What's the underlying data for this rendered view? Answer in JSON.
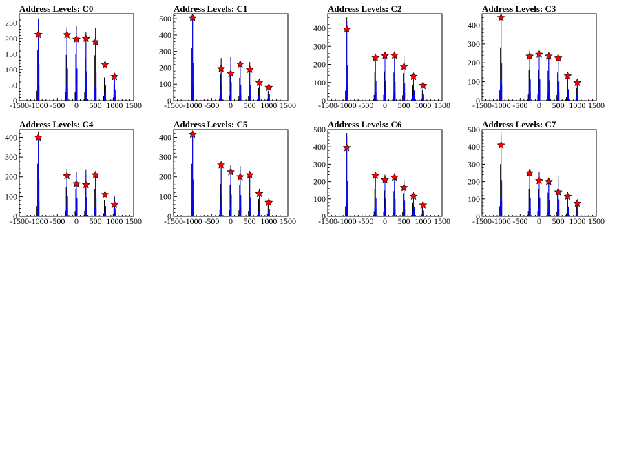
{
  "chart_data": [
    {
      "type": "histogram",
      "title": "Address Levels: C0",
      "xlim": [
        -1500,
        1500
      ],
      "ylim": [
        0,
        280
      ],
      "xticks": [
        -1500,
        -1000,
        -500,
        0,
        500,
        1000,
        1500
      ],
      "yticks": [
        0,
        50,
        100,
        150,
        200,
        250
      ],
      "series": [
        {
          "color": "#000000",
          "x": [
            -1000,
            -250,
            0,
            250,
            500,
            750,
            1000
          ],
          "y": [
            265,
            237,
            240,
            220,
            235,
            120,
            85
          ]
        },
        {
          "color": "#0000ff",
          "x": [
            -1000,
            -250,
            0,
            250,
            500,
            750,
            1000
          ],
          "y": [
            260,
            230,
            230,
            210,
            205,
            110,
            80
          ]
        }
      ],
      "peaks": {
        "color": "#ff0000",
        "x": [
          -1000,
          -250,
          0,
          250,
          500,
          750,
          1000
        ],
        "y": [
          213,
          212,
          198,
          200,
          189,
          116,
          77
        ]
      }
    },
    {
      "type": "histogram",
      "title": "Address Levels: C1",
      "xlim": [
        -1500,
        1500
      ],
      "ylim": [
        0,
        530
      ],
      "xticks": [
        -1500,
        -1000,
        -500,
        0,
        500,
        1000,
        1500
      ],
      "yticks": [
        0,
        100,
        200,
        300,
        400,
        500
      ],
      "series": [
        {
          "color": "#000000",
          "x": [
            -1000,
            -250,
            0,
            250,
            500,
            750,
            1000
          ],
          "y": [
            520,
            260,
            265,
            225,
            235,
            130,
            95
          ]
        },
        {
          "color": "#0000ff",
          "x": [
            -1000,
            -250,
            0,
            250,
            500,
            750,
            1000
          ],
          "y": [
            505,
            240,
            250,
            210,
            210,
            115,
            85
          ]
        }
      ],
      "peaks": {
        "color": "#ff0000",
        "x": [
          -1000,
          -250,
          0,
          250,
          500,
          750,
          1000
        ],
        "y": [
          505,
          195,
          165,
          222,
          190,
          110,
          80
        ]
      }
    },
    {
      "type": "histogram",
      "title": "Address Levels: C2",
      "xlim": [
        -1500,
        1500
      ],
      "ylim": [
        0,
        480
      ],
      "xticks": [
        -1500,
        -1000,
        -500,
        0,
        500,
        1000,
        1500
      ],
      "yticks": [
        0,
        100,
        200,
        300,
        400
      ],
      "series": [
        {
          "color": "#000000",
          "x": [
            -1000,
            -250,
            0,
            250,
            500,
            750,
            1000
          ],
          "y": [
            460,
            255,
            260,
            250,
            245,
            140,
            95
          ]
        },
        {
          "color": "#0000ff",
          "x": [
            -1000,
            -250,
            0,
            250,
            500,
            750,
            1000
          ],
          "y": [
            440,
            240,
            245,
            230,
            220,
            125,
            85
          ]
        }
      ],
      "peaks": {
        "color": "#ff0000",
        "x": [
          -1000,
          -250,
          0,
          250,
          500,
          750,
          1000
        ],
        "y": [
          395,
          237,
          248,
          250,
          188,
          133,
          83
        ]
      }
    },
    {
      "type": "histogram",
      "title": "Address Levels: C3",
      "xlim": [
        -1500,
        1500
      ],
      "ylim": [
        0,
        460
      ],
      "xticks": [
        -1500,
        -1000,
        -500,
        0,
        500,
        1000,
        1500
      ],
      "yticks": [
        0,
        100,
        200,
        300,
        400
      ],
      "series": [
        {
          "color": "#000000",
          "x": [
            -1000,
            -250,
            0,
            250,
            500,
            750,
            1000
          ],
          "y": [
            455,
            265,
            260,
            255,
            240,
            150,
            110
          ]
        },
        {
          "color": "#0000ff",
          "x": [
            -1000,
            -250,
            0,
            250,
            500,
            750,
            1000
          ],
          "y": [
            445,
            250,
            250,
            240,
            225,
            135,
            100
          ]
        }
      ],
      "peaks": {
        "color": "#ff0000",
        "x": [
          -1000,
          -250,
          0,
          250,
          500,
          750,
          1000
        ],
        "y": [
          440,
          235,
          245,
          235,
          225,
          130,
          95
        ]
      }
    },
    {
      "type": "histogram",
      "title": "Address Levels: C4",
      "xlim": [
        -1500,
        1500
      ],
      "ylim": [
        0,
        440
      ],
      "xticks": [
        -1500,
        -1000,
        -500,
        0,
        500,
        1000,
        1500
      ],
      "yticks": [
        0,
        100,
        200,
        300,
        400
      ],
      "series": [
        {
          "color": "#000000",
          "x": [
            -1000,
            -250,
            0,
            250,
            500,
            750,
            1000
          ],
          "y": [
            430,
            240,
            225,
            235,
            220,
            130,
            100
          ]
        },
        {
          "color": "#0000ff",
          "x": [
            -1000,
            -250,
            0,
            250,
            500,
            750,
            1000
          ],
          "y": [
            415,
            225,
            210,
            215,
            205,
            115,
            90
          ]
        }
      ],
      "peaks": {
        "color": "#ff0000",
        "x": [
          -1000,
          -250,
          0,
          250,
          500,
          750,
          1000
        ],
        "y": [
          400,
          205,
          165,
          160,
          210,
          110,
          60
        ]
      }
    },
    {
      "type": "histogram",
      "title": "Address Levels: C5",
      "xlim": [
        -1500,
        1500
      ],
      "ylim": [
        0,
        440
      ],
      "xticks": [
        -1500,
        -1000,
        -500,
        0,
        500,
        1000,
        1500
      ],
      "yticks": [
        0,
        100,
        200,
        300,
        400
      ],
      "series": [
        {
          "color": "#000000",
          "x": [
            -1000,
            -250,
            0,
            250,
            500,
            750,
            1000
          ],
          "y": [
            430,
            265,
            260,
            255,
            230,
            140,
            95
          ]
        },
        {
          "color": "#0000ff",
          "x": [
            -1000,
            -250,
            0,
            250,
            500,
            750,
            1000
          ],
          "y": [
            415,
            250,
            245,
            240,
            215,
            125,
            85
          ]
        }
      ],
      "peaks": {
        "color": "#ff0000",
        "x": [
          -1000,
          -250,
          0,
          250,
          500,
          750,
          1000
        ],
        "y": [
          415,
          260,
          225,
          200,
          210,
          115,
          70
        ]
      }
    },
    {
      "type": "histogram",
      "title": "Address Levels: C6",
      "xlim": [
        -1500,
        1500
      ],
      "ylim": [
        0,
        500
      ],
      "xticks": [
        -1500,
        -1000,
        -500,
        0,
        500,
        1000,
        1500
      ],
      "yticks": [
        0,
        100,
        200,
        300,
        400,
        500
      ],
      "series": [
        {
          "color": "#000000",
          "x": [
            -1000,
            -250,
            0,
            250,
            500,
            750,
            1000
          ],
          "y": [
            480,
            250,
            240,
            235,
            215,
            130,
            85
          ]
        },
        {
          "color": "#0000ff",
          "x": [
            -1000,
            -250,
            0,
            250,
            500,
            750,
            1000
          ],
          "y": [
            460,
            235,
            225,
            220,
            200,
            115,
            75
          ]
        }
      ],
      "peaks": {
        "color": "#ff0000",
        "x": [
          -1000,
          -250,
          0,
          250,
          500,
          750,
          1000
        ],
        "y": [
          395,
          235,
          210,
          225,
          165,
          115,
          65
        ]
      }
    },
    {
      "type": "histogram",
      "title": "Address Levels: C7",
      "xlim": [
        -1500,
        1500
      ],
      "ylim": [
        0,
        500
      ],
      "xticks": [
        -1500,
        -1000,
        -500,
        0,
        500,
        1000,
        1500
      ],
      "yticks": [
        0,
        100,
        200,
        300,
        400,
        500
      ],
      "series": [
        {
          "color": "#000000",
          "x": [
            -1000,
            -250,
            0,
            250,
            500,
            750,
            1000
          ],
          "y": [
            485,
            255,
            255,
            220,
            235,
            140,
            95
          ]
        },
        {
          "color": "#0000ff",
          "x": [
            -1000,
            -250,
            0,
            250,
            500,
            750,
            1000
          ],
          "y": [
            465,
            240,
            240,
            205,
            215,
            125,
            85
          ]
        }
      ],
      "peaks": {
        "color": "#ff0000",
        "x": [
          -1000,
          -250,
          0,
          250,
          500,
          750,
          1000
        ],
        "y": [
          410,
          250,
          205,
          200,
          140,
          115,
          75
        ]
      }
    }
  ]
}
